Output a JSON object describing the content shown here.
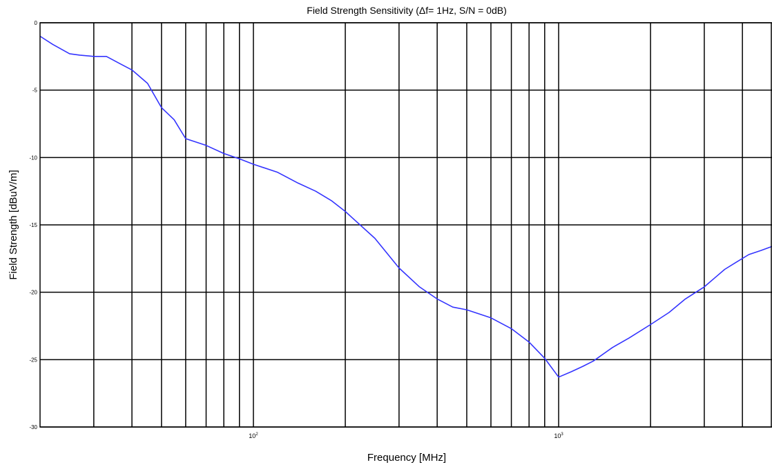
{
  "chart_data": {
    "type": "line",
    "title": "Field Strength Sensitivity (Δf= 1Hz, S/N = 0dB)",
    "xlabel": "Frequency [MHz]",
    "ylabel": "Field Strength [dBuV/m]",
    "xscale": "log",
    "xlim": [
      20,
      5000
    ],
    "ylim": [
      -30,
      0
    ],
    "grid": true,
    "x_major_ticks": [
      {
        "value": 100,
        "base": "10",
        "exp": "2"
      },
      {
        "value": 1000,
        "base": "10",
        "exp": "3"
      }
    ],
    "y_ticks": [
      {
        "value": 0,
        "label": "0"
      },
      {
        "value": -5,
        "label": "-5"
      },
      {
        "value": -10,
        "label": "-10"
      },
      {
        "value": -15,
        "label": "-15"
      },
      {
        "value": -20,
        "label": "-20"
      },
      {
        "value": -25,
        "label": "-25"
      },
      {
        "value": -30,
        "label": "-30"
      }
    ],
    "series": [
      {
        "color": "#3333ff",
        "x": [
          20,
          22,
          25,
          27,
          30,
          33,
          37,
          40,
          45,
          50,
          55,
          60,
          70,
          80,
          90,
          100,
          120,
          140,
          160,
          180,
          200,
          250,
          300,
          350,
          400,
          450,
          500,
          600,
          700,
          800,
          900,
          1000,
          1100,
          1200,
          1300,
          1500,
          1700,
          2000,
          2300,
          2600,
          3000,
          3300,
          3500,
          3800,
          4200,
          4600,
          5000
        ],
        "y": [
          -1.0,
          -1.6,
          -2.3,
          -2.4,
          -2.5,
          -2.5,
          -3.1,
          -3.5,
          -4.5,
          -6.3,
          -7.2,
          -8.6,
          -9.1,
          -9.7,
          -10.1,
          -10.5,
          -11.1,
          -11.9,
          -12.5,
          -13.2,
          -14.0,
          -16.0,
          -18.2,
          -19.6,
          -20.5,
          -21.1,
          -21.3,
          -21.9,
          -22.7,
          -23.7,
          -24.9,
          -26.3,
          -25.9,
          -25.5,
          -25.1,
          -24.1,
          -23.4,
          -22.4,
          -21.5,
          -20.5,
          -19.6,
          -18.8,
          -18.3,
          -17.8,
          -17.2,
          -16.9,
          -16.6
        ]
      }
    ]
  }
}
